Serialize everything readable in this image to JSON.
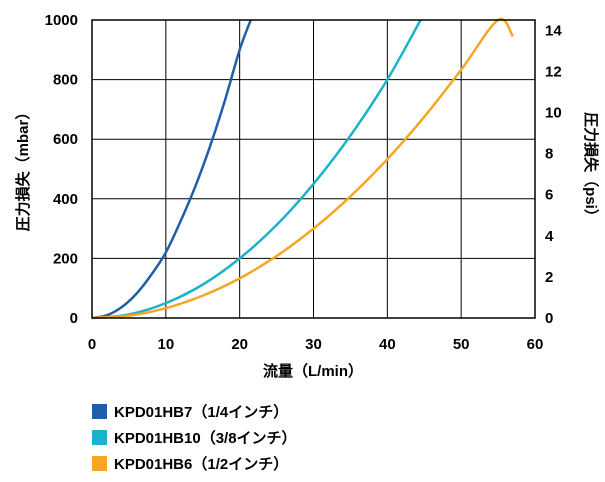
{
  "chart_data": {
    "type": "line",
    "title": "",
    "xlabel": "流量（L/min）",
    "ylabel": "圧力損失（mbar）",
    "y2label": "圧力損失（psi）",
    "xlim": [
      0,
      60
    ],
    "ylim": [
      0,
      1000
    ],
    "y2lim": [
      0,
      14.5
    ],
    "xticks": [
      0,
      10,
      20,
      30,
      40,
      50,
      60
    ],
    "yticks": [
      0,
      200,
      400,
      600,
      800,
      1000
    ],
    "y2ticks": [
      0,
      2,
      4,
      6,
      8,
      10,
      12,
      14
    ],
    "grid": true,
    "legend_position": "bottom-left",
    "series": [
      {
        "name": "KPD01HB7（1/4インチ）",
        "color": "#1f5fa8",
        "x": [
          0,
          2,
          4,
          6,
          8,
          10,
          12,
          14,
          16,
          18,
          20,
          21.5
        ],
        "y": [
          0,
          9,
          36,
          81,
          144,
          220,
          325,
          442,
          577,
          730,
          900,
          1000
        ]
      },
      {
        "name": "KPD01HB10（3/8インチ）",
        "color": "#1bb3c9",
        "x": [
          0,
          5,
          10,
          15,
          20,
          25,
          30,
          35,
          40,
          44.5
        ],
        "y": [
          0,
          12,
          50,
          112,
          200,
          312,
          450,
          612,
          800,
          1000
        ]
      },
      {
        "name": "KPD01HB6（1/2インチ）",
        "color": "#f5a623",
        "x": [
          0,
          5,
          10,
          15,
          20,
          25,
          30,
          35,
          40,
          45,
          50,
          55,
          57
        ],
        "y": [
          0,
          8,
          33,
          75,
          133,
          208,
          300,
          408,
          533,
          675,
          833,
          1008,
          945
        ]
      }
    ]
  }
}
